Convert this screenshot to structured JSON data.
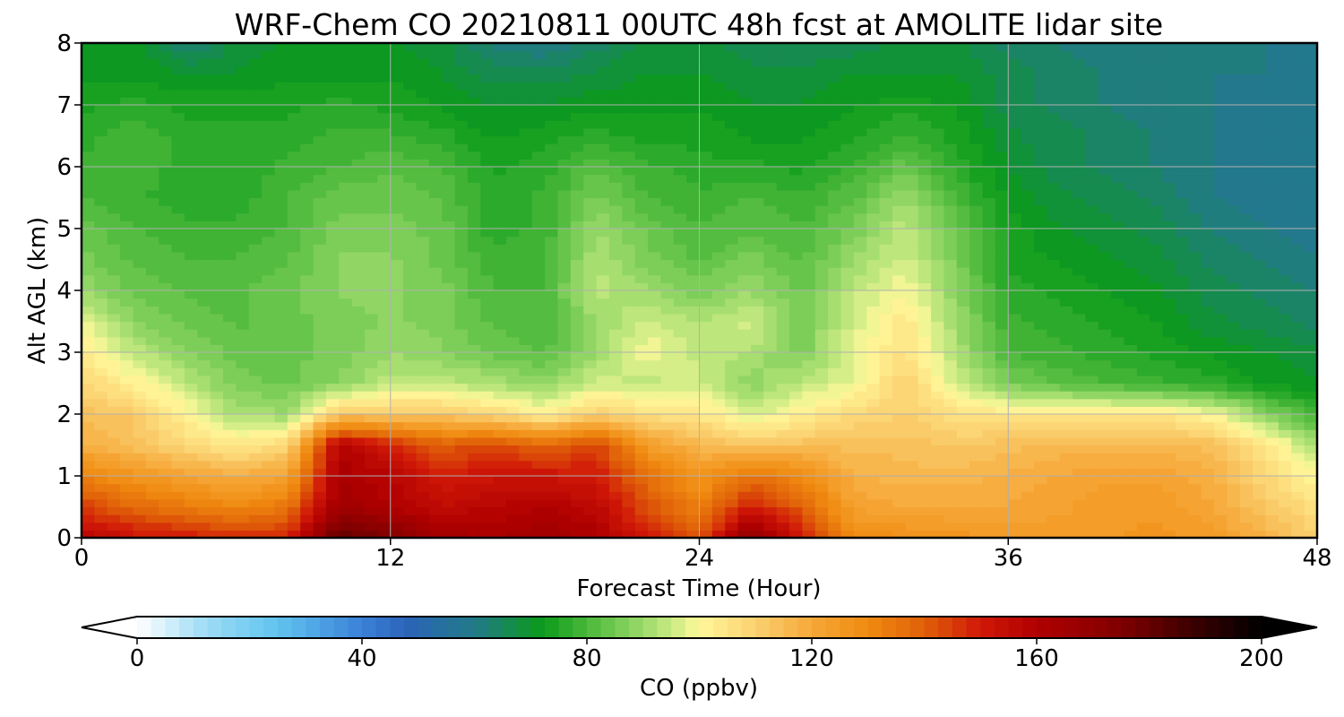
{
  "chart_data": {
    "type": "heatmap",
    "subtype": "filled-contour time-height cross section",
    "title": "WRF-Chem CO  20210811 00UTC 48h fcst at AMOLITE lidar site",
    "xlabel": "Forecast Time (Hour)",
    "ylabel": "Alt AGL (km)",
    "xlim": [
      0,
      48
    ],
    "ylim": [
      0,
      8
    ],
    "xticks": [
      0,
      12,
      24,
      36,
      48
    ],
    "yticks": [
      0,
      1,
      2,
      3,
      4,
      5,
      6,
      7,
      8
    ],
    "grid": true,
    "x": [
      0,
      2,
      4,
      6,
      8,
      10,
      12,
      14,
      16,
      18,
      20,
      22,
      24,
      26,
      28,
      30,
      32,
      34,
      36,
      38,
      40,
      42,
      44,
      46,
      48
    ],
    "y": [
      0,
      0.5,
      1,
      1.5,
      2,
      2.5,
      3,
      3.5,
      4,
      4.5,
      5,
      5.5,
      6,
      6.5,
      7,
      7.5,
      8
    ],
    "z_units": "ppbv",
    "z": [
      [
        158,
        152,
        150,
        148,
        148,
        182,
        175,
        165,
        162,
        165,
        162,
        150,
        140,
        172,
        150,
        130,
        128,
        126,
        124,
        124,
        125,
        126,
        124,
        118,
        110
      ],
      [
        145,
        138,
        134,
        130,
        135,
        165,
        160,
        155,
        158,
        160,
        156,
        142,
        132,
        150,
        140,
        122,
        120,
        120,
        120,
        122,
        124,
        124,
        120,
        112,
        106
      ],
      [
        132,
        126,
        122,
        118,
        122,
        162,
        158,
        150,
        152,
        152,
        150,
        136,
        126,
        136,
        130,
        118,
        116,
        116,
        118,
        120,
        122,
        122,
        118,
        108,
        100
      ],
      [
        118,
        114,
        108,
        104,
        108,
        160,
        150,
        140,
        144,
        138,
        145,
        124,
        116,
        112,
        114,
        114,
        114,
        112,
        114,
        116,
        116,
        116,
        114,
        104,
        92
      ],
      [
        114,
        112,
        102,
        92,
        90,
        112,
        112,
        112,
        108,
        102,
        110,
        106,
        104,
        96,
        102,
        108,
        110,
        106,
        104,
        104,
        104,
        104,
        100,
        88,
        78
      ],
      [
        108,
        102,
        94,
        86,
        84,
        88,
        94,
        94,
        92,
        88,
        96,
        94,
        96,
        88,
        94,
        98,
        110,
        96,
        86,
        82,
        80,
        78,
        76,
        72,
        70
      ],
      [
        104,
        94,
        88,
        84,
        84,
        86,
        90,
        88,
        84,
        82,
        90,
        100,
        94,
        92,
        86,
        98,
        106,
        92,
        80,
        78,
        76,
        74,
        72,
        70,
        68
      ],
      [
        98,
        88,
        84,
        82,
        84,
        86,
        88,
        86,
        82,
        80,
        90,
        96,
        92,
        96,
        86,
        96,
        104,
        90,
        78,
        76,
        74,
        72,
        68,
        66,
        64
      ],
      [
        90,
        84,
        82,
        82,
        84,
        88,
        88,
        86,
        80,
        80,
        94,
        90,
        86,
        90,
        84,
        94,
        100,
        88,
        76,
        74,
        72,
        70,
        66,
        64,
        62
      ],
      [
        86,
        82,
        80,
        80,
        82,
        88,
        88,
        84,
        78,
        80,
        92,
        86,
        82,
        86,
        82,
        90,
        96,
        86,
        74,
        72,
        70,
        68,
        64,
        62,
        60
      ],
      [
        84,
        80,
        78,
        78,
        80,
        86,
        86,
        84,
        76,
        78,
        90,
        84,
        80,
        82,
        80,
        86,
        94,
        84,
        74,
        70,
        68,
        66,
        62,
        60,
        58
      ],
      [
        80,
        78,
        76,
        76,
        80,
        84,
        84,
        82,
        76,
        78,
        86,
        80,
        78,
        80,
        78,
        82,
        90,
        80,
        72,
        68,
        66,
        64,
        60,
        58,
        58
      ],
      [
        78,
        80,
        76,
        76,
        78,
        80,
        82,
        80,
        74,
        76,
        82,
        78,
        76,
        76,
        74,
        78,
        84,
        76,
        70,
        66,
        64,
        62,
        60,
        58,
        58
      ],
      [
        76,
        80,
        76,
        76,
        76,
        78,
        78,
        76,
        72,
        74,
        76,
        74,
        74,
        72,
        72,
        74,
        78,
        74,
        68,
        66,
        64,
        62,
        60,
        58,
        58
      ],
      [
        74,
        76,
        74,
        74,
        74,
        76,
        74,
        72,
        70,
        70,
        72,
        72,
        72,
        70,
        70,
        72,
        74,
        72,
        66,
        64,
        62,
        62,
        60,
        58,
        58
      ],
      [
        72,
        72,
        70,
        70,
        72,
        72,
        72,
        70,
        66,
        66,
        68,
        70,
        70,
        68,
        68,
        70,
        70,
        70,
        66,
        64,
        62,
        62,
        60,
        60,
        58
      ],
      [
        72,
        72,
        62,
        68,
        70,
        70,
        70,
        68,
        62,
        60,
        64,
        68,
        68,
        66,
        66,
        66,
        68,
        68,
        64,
        62,
        62,
        62,
        60,
        60,
        60
      ]
    ],
    "colorbar": {
      "label": "CO  (ppbv)",
      "min": 0,
      "max": 200,
      "ticks": [
        0,
        40,
        80,
        120,
        160,
        200
      ],
      "extend": "both",
      "colormap_stops": [
        [
          0,
          "#ffffff"
        ],
        [
          12,
          "#9fdcf5"
        ],
        [
          25,
          "#60c4f0"
        ],
        [
          40,
          "#3a80d8"
        ],
        [
          48,
          "#2a64b8"
        ],
        [
          60,
          "#227a88"
        ],
        [
          72,
          "#0a9a1a"
        ],
        [
          80,
          "#4ab83a"
        ],
        [
          88,
          "#8ad460"
        ],
        [
          95,
          "#c8ea82"
        ],
        [
          100,
          "#fff89a"
        ],
        [
          110,
          "#fbd070"
        ],
        [
          120,
          "#f6a838"
        ],
        [
          130,
          "#f08a10"
        ],
        [
          140,
          "#e06008"
        ],
        [
          150,
          "#d01808"
        ],
        [
          160,
          "#b00000"
        ],
        [
          175,
          "#800000"
        ],
        [
          190,
          "#300000"
        ],
        [
          200,
          "#000000"
        ]
      ]
    }
  }
}
